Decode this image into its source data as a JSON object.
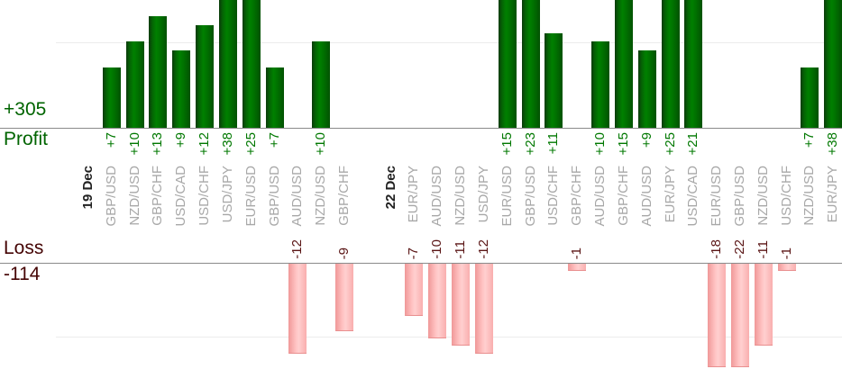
{
  "chart_data": {
    "type": "bar",
    "description": "Per-trade profit and loss by currency pair, grouped by date; green bars above the Profit axis, pink bars below the Loss axis",
    "legend_position": "none",
    "grid": "horizontal gridlines at +/-10 units, bars clipped at roughly +15 / -14 visible units",
    "profit_axis": {
      "total_label": "+305",
      "axis_label": "Profit",
      "gridline_value": 10,
      "visible_clip_value": 15
    },
    "loss_axis": {
      "total_label": "-114",
      "axis_label": "Loss",
      "gridline_value": -10,
      "visible_clip_value": -14
    },
    "columns": [
      {
        "label": "19 Dec",
        "date": true,
        "profit": null,
        "loss": null
      },
      {
        "label": "GBP/USD",
        "date": false,
        "profit": 7,
        "loss": null
      },
      {
        "label": "NZD/USD",
        "date": false,
        "profit": 10,
        "loss": null
      },
      {
        "label": "GBP/CHF",
        "date": false,
        "profit": 13,
        "loss": null
      },
      {
        "label": "USD/CAD",
        "date": false,
        "profit": 9,
        "loss": null
      },
      {
        "label": "USD/CHF",
        "date": false,
        "profit": 12,
        "loss": null
      },
      {
        "label": "USD/JPY",
        "date": false,
        "profit": 38,
        "loss": null
      },
      {
        "label": "EUR/USD",
        "date": false,
        "profit": 25,
        "loss": null
      },
      {
        "label": "GBP/USD",
        "date": false,
        "profit": 7,
        "loss": null
      },
      {
        "label": "AUD/USD",
        "date": false,
        "profit": null,
        "loss": -12
      },
      {
        "label": "NZD/USD",
        "date": false,
        "profit": 10,
        "loss": null
      },
      {
        "label": "GBP/CHF",
        "date": false,
        "profit": null,
        "loss": -9
      },
      {
        "label": "",
        "date": false,
        "profit": null,
        "loss": null
      },
      {
        "label": "22 Dec",
        "date": true,
        "profit": null,
        "loss": null
      },
      {
        "label": "EUR/JPY",
        "date": false,
        "profit": null,
        "loss": -7
      },
      {
        "label": "AUD/USD",
        "date": false,
        "profit": null,
        "loss": -10
      },
      {
        "label": "NZD/USD",
        "date": false,
        "profit": null,
        "loss": -11
      },
      {
        "label": "USD/JPY",
        "date": false,
        "profit": null,
        "loss": -12
      },
      {
        "label": "EUR/USD",
        "date": false,
        "profit": 15,
        "loss": null
      },
      {
        "label": "GBP/USD",
        "date": false,
        "profit": 23,
        "loss": null
      },
      {
        "label": "USD/CHF",
        "date": false,
        "profit": 11,
        "loss": null
      },
      {
        "label": "GBP/CHF",
        "date": false,
        "profit": null,
        "loss": -1
      },
      {
        "label": "AUD/USD",
        "date": false,
        "profit": 10,
        "loss": null
      },
      {
        "label": "GBP/CHF",
        "date": false,
        "profit": 15,
        "loss": null
      },
      {
        "label": "AUD/USD",
        "date": false,
        "profit": 9,
        "loss": null
      },
      {
        "label": "EUR/JPY",
        "date": false,
        "profit": 25,
        "loss": null
      },
      {
        "label": "USD/CAD",
        "date": false,
        "profit": 21,
        "loss": null
      },
      {
        "label": "EUR/USD",
        "date": false,
        "profit": null,
        "loss": -18
      },
      {
        "label": "GBP/USD",
        "date": false,
        "profit": null,
        "loss": -22
      },
      {
        "label": "NZD/USD",
        "date": false,
        "profit": null,
        "loss": -11
      },
      {
        "label": "USD/CHF",
        "date": false,
        "profit": null,
        "loss": -1
      },
      {
        "label": "NZD/USD",
        "date": false,
        "profit": 7,
        "loss": null
      },
      {
        "label": "EUR/JPY",
        "date": false,
        "profit": 38,
        "loss": null
      }
    ],
    "colors": {
      "profit_bar": "#008000",
      "profit_value_text": "#007800",
      "profit_axis_text": "#006400",
      "loss_bar": "#ffc3c3",
      "loss_value_text": "#5a1515",
      "loss_axis_text": "#450505",
      "category_text": "#a8a8a8",
      "date_text": "#222222",
      "axis_line": "#8a8a8a",
      "gridline": "#ececec"
    }
  }
}
